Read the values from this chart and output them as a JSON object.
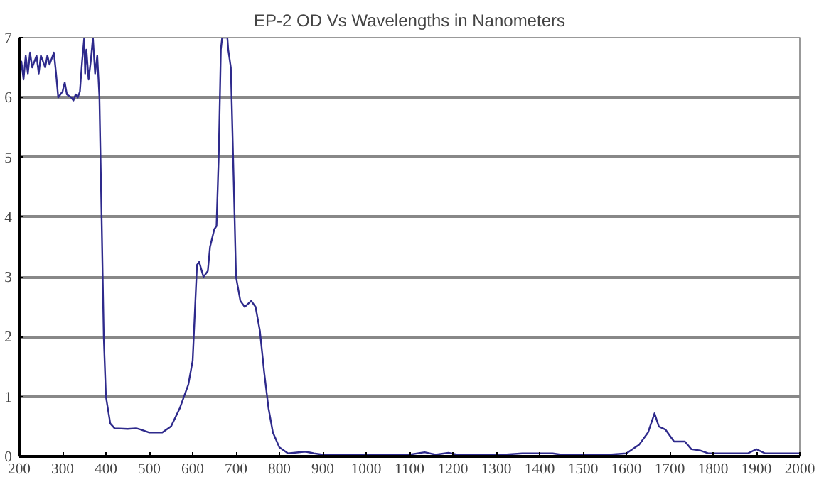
{
  "chart_data": {
    "type": "line",
    "title": "EP-2 OD Vs Wavelengths in Nanometers",
    "x": [
      200,
      205,
      210,
      215,
      220,
      225,
      230,
      240,
      245,
      250,
      260,
      265,
      270,
      280,
      285,
      290,
      300,
      305,
      310,
      320,
      325,
      330,
      335,
      340,
      345,
      350,
      352,
      355,
      360,
      365,
      370,
      375,
      380,
      385,
      390,
      395,
      400,
      410,
      420,
      450,
      470,
      480,
      500,
      530,
      550,
      570,
      590,
      600,
      610,
      615,
      625,
      635,
      640,
      650,
      655,
      660,
      665,
      668,
      680,
      682,
      688,
      695,
      700,
      710,
      720,
      735,
      745,
      755,
      765,
      775,
      785,
      800,
      820,
      860,
      880,
      900,
      1100,
      1135,
      1160,
      1190,
      1210,
      1300,
      1360,
      1430,
      1450,
      1560,
      1600,
      1630,
      1650,
      1665,
      1675,
      1690,
      1710,
      1735,
      1750,
      1770,
      1790,
      1880,
      1900,
      1920,
      2000
    ],
    "series": [
      {
        "color": "#2e2a8c",
        "values": [
          6.2,
          6.6,
          6.3,
          6.7,
          6.4,
          6.75,
          6.5,
          6.7,
          6.4,
          6.7,
          6.5,
          6.7,
          6.55,
          6.75,
          6.4,
          6.0,
          6.1,
          6.25,
          6.05,
          6.0,
          5.95,
          6.05,
          6.0,
          6.1,
          6.6,
          7.0,
          6.4,
          6.8,
          6.3,
          6.6,
          7.0,
          6.4,
          6.7,
          6.0,
          4.0,
          2.0,
          1.0,
          0.55,
          0.47,
          0.46,
          0.47,
          0.45,
          0.4,
          0.4,
          0.5,
          0.8,
          1.2,
          1.6,
          3.2,
          3.25,
          3.0,
          3.1,
          3.5,
          3.8,
          3.85,
          5.0,
          6.8,
          7.0,
          7.0,
          6.8,
          6.5,
          4.5,
          3.0,
          2.6,
          2.5,
          2.6,
          2.5,
          2.1,
          1.4,
          0.8,
          0.4,
          0.15,
          0.05,
          0.08,
          0.05,
          0.03,
          0.03,
          0.07,
          0.03,
          0.06,
          0.03,
          0.02,
          0.05,
          0.05,
          0.03,
          0.03,
          0.05,
          0.2,
          0.4,
          0.72,
          0.5,
          0.45,
          0.25,
          0.25,
          0.12,
          0.1,
          0.05,
          0.05,
          0.12,
          0.05,
          0.05
        ]
      }
    ],
    "xlim": [
      200,
      2000
    ],
    "xticks": [
      200,
      300,
      400,
      500,
      600,
      700,
      800,
      900,
      1000,
      1100,
      1200,
      1300,
      1400,
      1500,
      1600,
      1700,
      1800,
      1900,
      2000
    ],
    "ylim": [
      0,
      7
    ],
    "yticks": [
      0,
      1,
      2,
      3,
      4,
      5,
      6,
      7
    ],
    "grid": "y"
  }
}
